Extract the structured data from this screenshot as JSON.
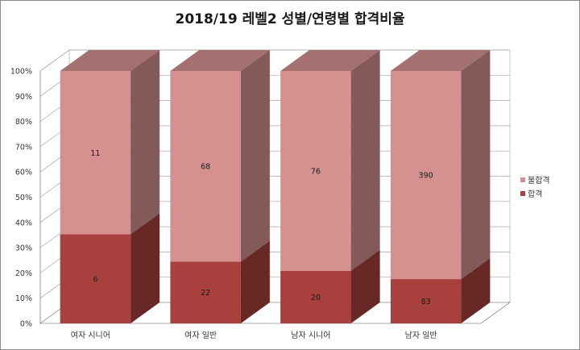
{
  "chart_data": {
    "type": "bar",
    "stacked": "percent",
    "three_d": true,
    "title": "2018/19 레벨2 성별/연령별 합격비율",
    "categories": [
      "여자 시니어",
      "여자 일반",
      "남자 시니어",
      "남자 일반"
    ],
    "series": [
      {
        "name": "합격",
        "values": [
          6,
          22,
          20,
          83
        ],
        "color": "#a8413e"
      },
      {
        "name": "불합격",
        "values": [
          11,
          68,
          76,
          390
        ],
        "color": "#d49190"
      }
    ],
    "y_ticks": [
      "0%",
      "10%",
      "20%",
      "30%",
      "40%",
      "50%",
      "60%",
      "70%",
      "80%",
      "90%",
      "100%"
    ],
    "ylim": [
      0,
      100
    ],
    "grid": true,
    "legend_position": "right"
  }
}
